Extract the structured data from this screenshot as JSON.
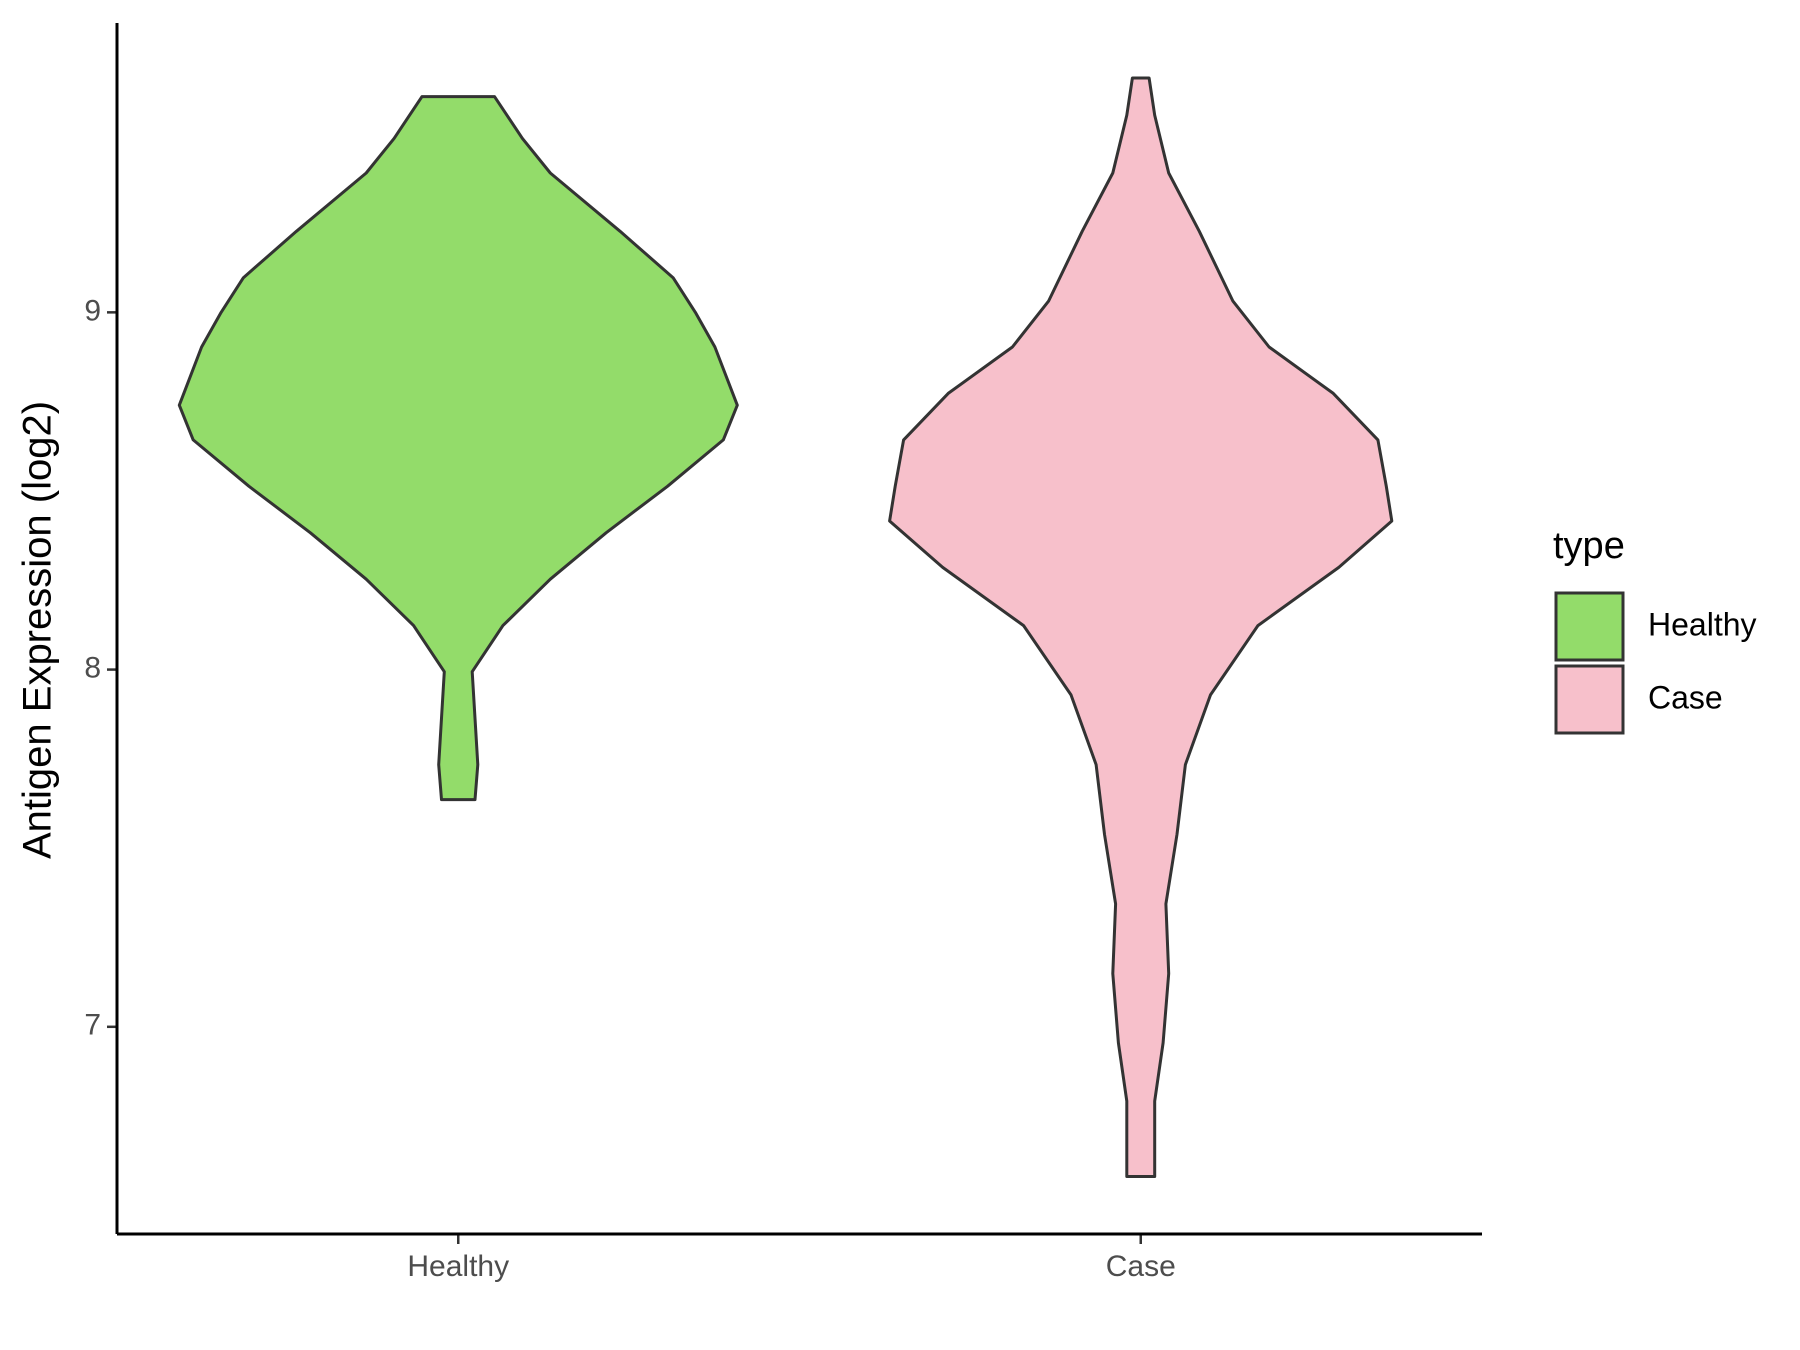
{
  "chart_data": {
    "type": "violin",
    "y_label": "Antigen Expression (log2)",
    "categories": [
      "Healthy",
      "Case"
    ],
    "legend_title": "type",
    "legend": "right",
    "ylim": [
      6.42,
      9.81
    ],
    "yticks": [
      7,
      8,
      9
    ],
    "series": [
      {
        "name": "Healthy",
        "color": "#93dc6a",
        "y": [
          9.604,
          9.487,
          9.39,
          9.227,
          9.097,
          9.0,
          8.903,
          8.74,
          8.643,
          8.513,
          8.383,
          8.253,
          8.123,
          7.994,
          7.864,
          7.734,
          7.636
        ],
        "density": [
          0.13,
          0.23,
          0.33,
          0.58,
          0.77,
          0.85,
          0.92,
          1.0,
          0.95,
          0.75,
          0.53,
          0.33,
          0.16,
          0.05,
          0.06,
          0.07,
          0.06
        ]
      },
      {
        "name": "Case",
        "color": "#f7c0cb",
        "y": [
          9.656,
          9.552,
          9.39,
          9.227,
          9.032,
          8.903,
          8.773,
          8.643,
          8.513,
          8.416,
          8.286,
          8.123,
          7.929,
          7.734,
          7.539,
          7.344,
          7.149,
          6.955,
          6.792,
          6.581
        ],
        "density": [
          0.03,
          0.05,
          0.1,
          0.21,
          0.33,
          0.46,
          0.69,
          0.85,
          0.88,
          0.9,
          0.71,
          0.42,
          0.25,
          0.16,
          0.13,
          0.09,
          0.1,
          0.08,
          0.05,
          0.05
        ]
      }
    ]
  }
}
